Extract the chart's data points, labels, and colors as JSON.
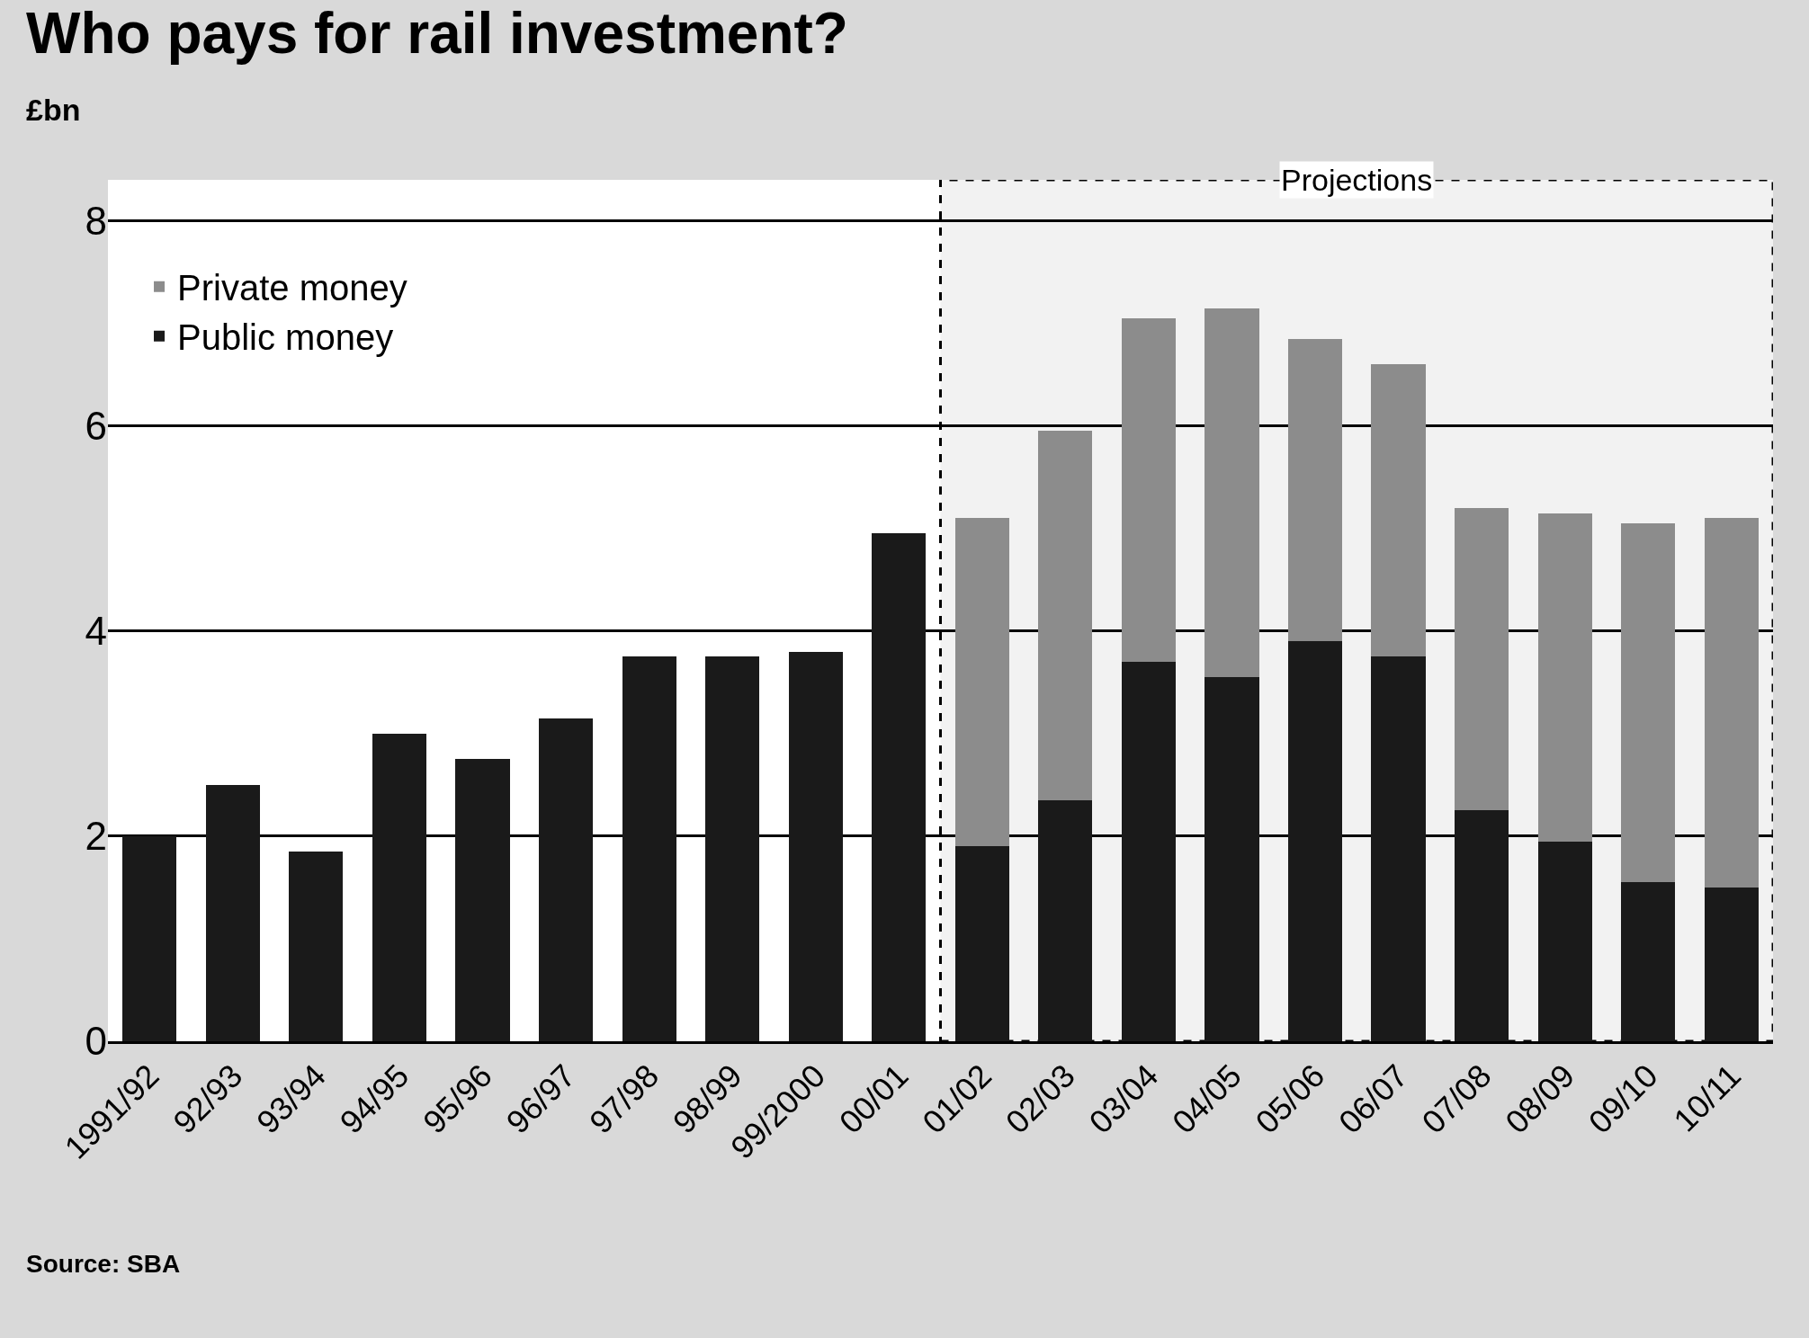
{
  "chart_data": {
    "type": "bar",
    "title": "Who pays for rail investment?",
    "ylabel": "£bn",
    "categories": [
      "1991/92",
      "92/93",
      "93/94",
      "94/95",
      "95/96",
      "96/97",
      "97/98",
      "98/99",
      "99/2000",
      "00/01",
      "01/02",
      "02/03",
      "03/04",
      "04/05",
      "05/06",
      "06/07",
      "07/08",
      "08/09",
      "09/10",
      "10/11"
    ],
    "stacked": true,
    "series": [
      {
        "name": "Public money",
        "color": "#1a1a1a",
        "values": [
          2.0,
          2.5,
          1.85,
          3.0,
          2.75,
          3.15,
          3.75,
          3.75,
          3.8,
          4.95,
          1.9,
          2.35,
          3.7,
          3.55,
          3.9,
          3.75,
          2.25,
          1.95,
          1.55,
          1.5
        ]
      },
      {
        "name": "Private money",
        "color": "#8c8c8c",
        "values": [
          null,
          null,
          null,
          null,
          null,
          null,
          null,
          null,
          null,
          null,
          3.2,
          3.6,
          3.35,
          3.6,
          2.95,
          2.85,
          2.95,
          3.2,
          3.5,
          3.6
        ]
      }
    ],
    "ylim": [
      0,
      8.4
    ],
    "yticks": [
      0,
      2,
      4,
      6,
      8
    ],
    "grid": "y",
    "legend": "top left",
    "bands": [
      {
        "axis": "x",
        "from": "01/02",
        "to": "10/11",
        "label": "Projections",
        "color": "#f2f2f2"
      }
    ],
    "annotations": [
      "Source: SBA"
    ]
  }
}
